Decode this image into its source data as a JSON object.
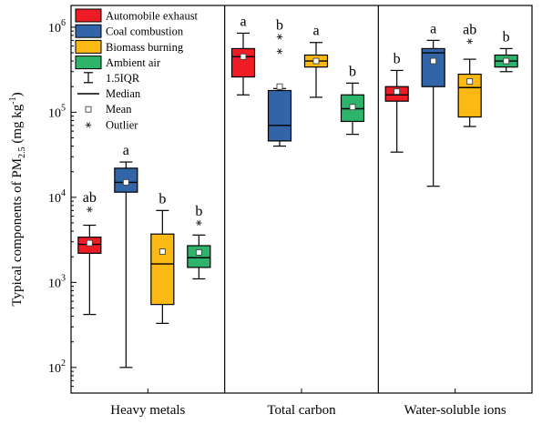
{
  "chart_data": {
    "type": "boxplot",
    "title": "",
    "ylabel": {
      "main": "Typical components of PM",
      "sub": "2.5",
      "unit_open": " (mg kg",
      "unit_sup": "-1",
      "unit_close": ")"
    },
    "yscale": "log",
    "ylim": [
      50,
      1800000
    ],
    "yticks": [
      {
        "value": 100,
        "base": "10",
        "exp": "2"
      },
      {
        "value": 1000,
        "base": "10",
        "exp": "3"
      },
      {
        "value": 10000,
        "base": "10",
        "exp": "4"
      },
      {
        "value": 100000,
        "base": "10",
        "exp": "5"
      },
      {
        "value": 1000000,
        "base": "10",
        "exp": "6"
      }
    ],
    "groups": [
      "Heavy metals",
      "Total carbon",
      "Water-soluble ions"
    ],
    "series": [
      {
        "name": "Automobile exhaust",
        "color": "#ee1c25"
      },
      {
        "name": "Coal combustion",
        "color": "#3264a8"
      },
      {
        "name": "Biomass burning",
        "color": "#fdb913"
      },
      {
        "name": "Ambient air",
        "color": "#2db36a"
      }
    ],
    "legend": {
      "position": "top-left",
      "whisker_label": "1.5IQR",
      "median_label": "Median",
      "mean_label": "Mean",
      "outlier_label": "Outlier"
    },
    "boxes": [
      {
        "group": 0,
        "series": 0,
        "whisker_low": 420,
        "q1": 2200,
        "median": 2800,
        "q3": 3400,
        "whisker_high": 4700,
        "mean": 2900,
        "outliers": [
          7200
        ],
        "sig": "ab"
      },
      {
        "group": 0,
        "series": 1,
        "whisker_low": 100,
        "q1": 11500,
        "median": 15000,
        "q3": 22000,
        "whisker_high": 26000,
        "mean": 15000,
        "outliers": [],
        "sig": "a"
      },
      {
        "group": 0,
        "series": 2,
        "whisker_low": 330,
        "q1": 550,
        "median": 1650,
        "q3": 3700,
        "whisker_high": 7000,
        "mean": 2300,
        "outliers": [],
        "sig": "b"
      },
      {
        "group": 0,
        "series": 3,
        "whisker_low": 1100,
        "q1": 1500,
        "median": 1950,
        "q3": 2700,
        "whisker_high": 3600,
        "mean": 2250,
        "outliers": [
          5000
        ],
        "sig": "b"
      },
      {
        "group": 1,
        "series": 0,
        "whisker_low": 160000,
        "q1": 260000,
        "median": 450000,
        "q3": 560000,
        "whisker_high": 850000,
        "mean": 450000,
        "outliers": [],
        "sig": "a"
      },
      {
        "group": 1,
        "series": 1,
        "whisker_low": 40000,
        "q1": 46000,
        "median": 70000,
        "q3": 180000,
        "whisker_high": 190000,
        "mean": 200000,
        "outliers": [
          520000,
          770000
        ],
        "sig": "b"
      },
      {
        "group": 1,
        "series": 2,
        "whisker_low": 150000,
        "q1": 340000,
        "median": 400000,
        "q3": 470000,
        "whisker_high": 660000,
        "mean": 400000,
        "outliers": [],
        "sig": "a"
      },
      {
        "group": 1,
        "series": 3,
        "whisker_low": 55000,
        "q1": 78000,
        "median": 110000,
        "q3": 160000,
        "whisker_high": 220000,
        "mean": 115000,
        "outliers": [],
        "sig": "b"
      },
      {
        "group": 2,
        "series": 0,
        "whisker_low": 34000,
        "q1": 135000,
        "median": 160000,
        "q3": 200000,
        "whisker_high": 310000,
        "mean": 175000,
        "outliers": [],
        "sig": "b"
      },
      {
        "group": 2,
        "series": 1,
        "whisker_low": 13500,
        "q1": 200000,
        "median": 500000,
        "q3": 560000,
        "whisker_high": 700000,
        "mean": 400000,
        "outliers": [],
        "sig": "a"
      },
      {
        "group": 2,
        "series": 2,
        "whisker_low": 68000,
        "q1": 88000,
        "median": 195000,
        "q3": 280000,
        "whisker_high": 420000,
        "mean": 230000,
        "outliers": [
          680000
        ],
        "sig": "ab"
      },
      {
        "group": 2,
        "series": 3,
        "whisker_low": 300000,
        "q1": 340000,
        "median": 400000,
        "q3": 470000,
        "whisker_high": 560000,
        "mean": 400000,
        "outliers": [],
        "sig": "b"
      }
    ]
  }
}
